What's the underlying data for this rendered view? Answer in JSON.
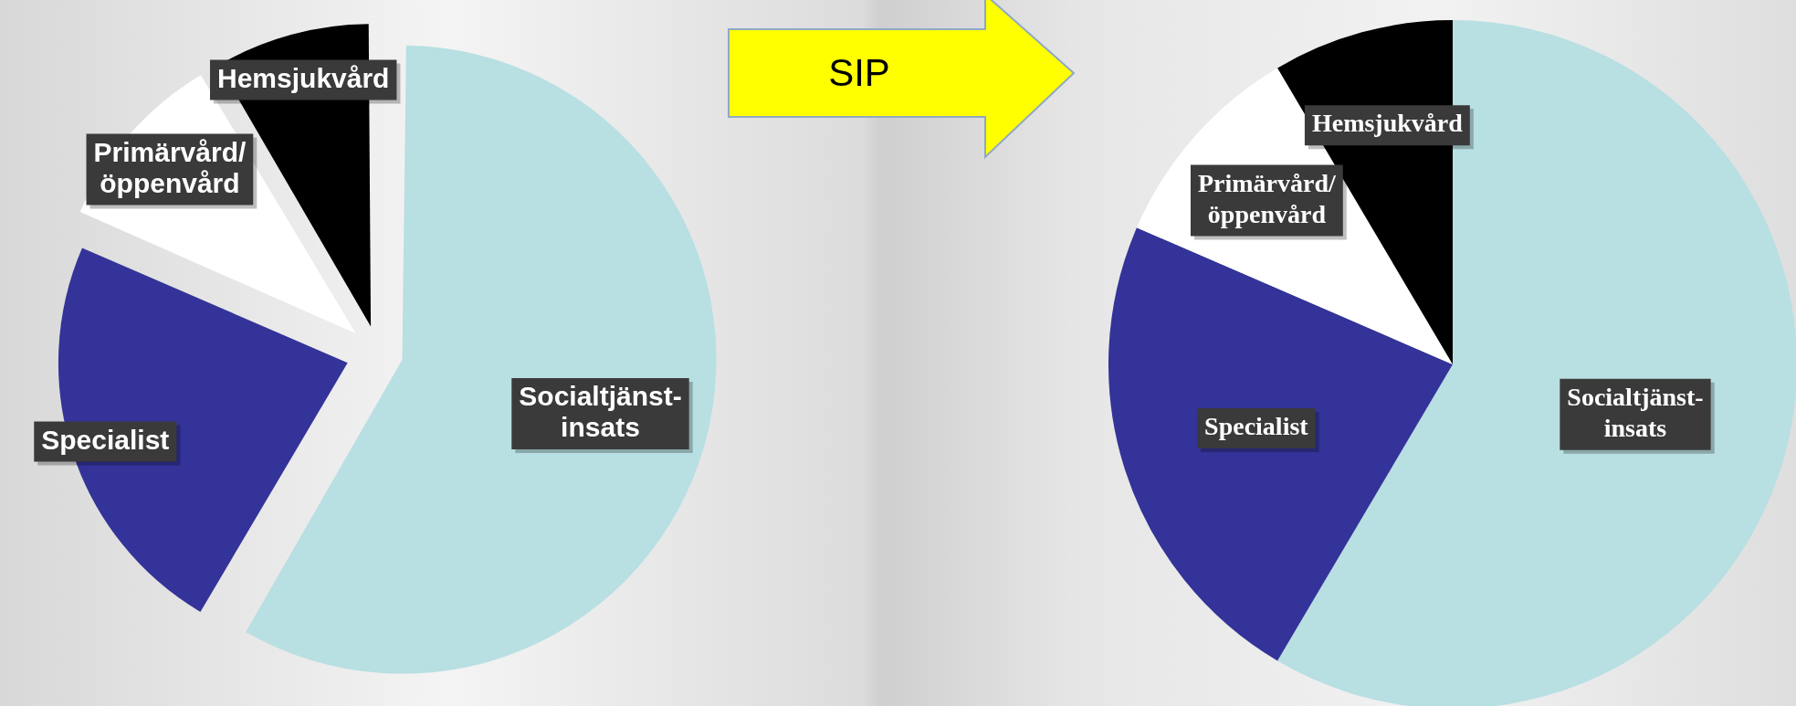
{
  "chart_data": [
    {
      "type": "pie",
      "categories": [
        "Socialtjänst-insats",
        "Specialist",
        "Primärvård/öppenvård",
        "Hemsjukvård"
      ],
      "values": [
        58.5,
        23,
        10,
        8.5
      ],
      "colors": [
        "#b8dfe2",
        "#333399",
        "#ffffff",
        "#000000"
      ],
      "data_labels": false,
      "legend": false
    },
    {
      "type": "pie",
      "categories": [
        "Socialtjänst-insats",
        "Specialist",
        "Primärvård/öppenvård",
        "Hemsjukvård"
      ],
      "values": [
        58.5,
        23,
        10,
        8.5
      ],
      "colors": [
        "#b8dfe2",
        "#333399",
        "#ffffff",
        "#000000"
      ],
      "data_labels": false,
      "legend": false,
      "annotations": [
        "SIP"
      ]
    }
  ]
}
